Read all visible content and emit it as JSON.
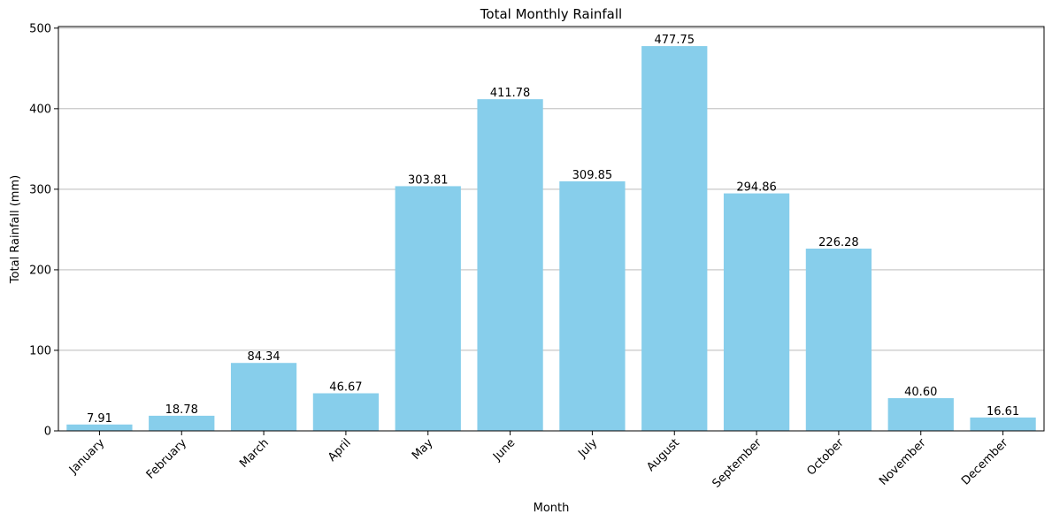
{
  "chart_data": {
    "type": "bar",
    "title": "Total Monthly Rainfall",
    "xlabel": "Month",
    "ylabel": "Total Rainfall (mm)",
    "categories": [
      "January",
      "February",
      "March",
      "April",
      "May",
      "June",
      "July",
      "August",
      "September",
      "October",
      "November",
      "December"
    ],
    "values": [
      7.91,
      18.78,
      84.34,
      46.67,
      303.81,
      411.78,
      309.85,
      477.75,
      294.86,
      226.28,
      40.6,
      16.61
    ],
    "data_labels": [
      "7.91",
      "18.78",
      "84.34",
      "46.67",
      "303.81",
      "411.78",
      "309.85",
      "477.75",
      "294.86",
      "226.28",
      "40.60",
      "16.61"
    ],
    "ylim": [
      0,
      502
    ],
    "yticks": [
      0,
      100,
      200,
      300,
      400,
      500
    ],
    "grid": "y-major",
    "bar_color": "#87CEEB",
    "grid_color": "#b0b0b0",
    "x_tick_rotation_deg": 45
  }
}
